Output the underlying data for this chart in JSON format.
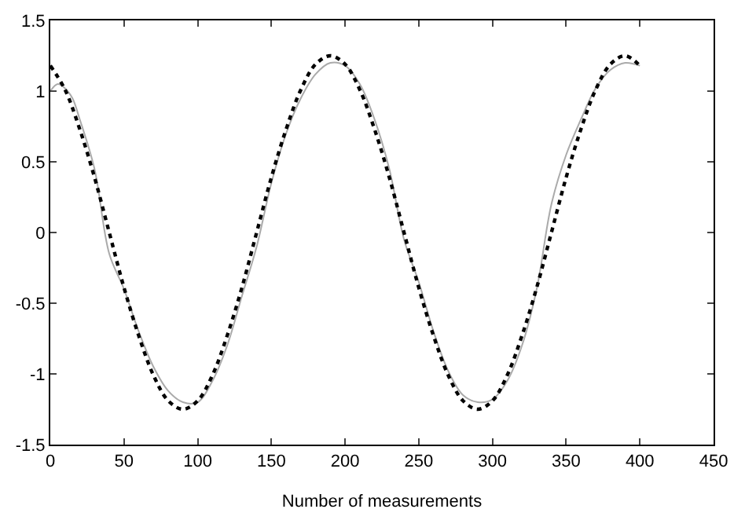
{
  "chart_data": {
    "type": "line",
    "xlabel": "Number of measurements",
    "xlim": [
      0,
      450
    ],
    "xticks": [
      0,
      50,
      100,
      150,
      200,
      250,
      300,
      350,
      400,
      450
    ],
    "ylim": [
      -1.5,
      1.5
    ],
    "yticks": [
      -1.5,
      -1,
      -0.5,
      0,
      0.5,
      1,
      1.5
    ],
    "marker": "none",
    "series": [
      {
        "color": "#aaaaaa",
        "line_style": "solid",
        "x": [
          0,
          5,
          10,
          15,
          20,
          30,
          40,
          50,
          60,
          70,
          80,
          90,
          100,
          110,
          120,
          130,
          140,
          150,
          160,
          170,
          180,
          190,
          200,
          210,
          220,
          230,
          240,
          250,
          260,
          270,
          280,
          290,
          300,
          310,
          320,
          330,
          340,
          350,
          360,
          370,
          380,
          390,
          400
        ],
        "values": [
          1.0,
          1.05,
          1.02,
          0.95,
          0.8,
          0.45,
          -0.15,
          -0.4,
          -0.7,
          -0.95,
          -1.12,
          -1.2,
          -1.2,
          -1.05,
          -0.8,
          -0.45,
          -0.1,
          0.35,
          0.7,
          0.95,
          1.12,
          1.2,
          1.18,
          1.05,
          0.8,
          0.45,
          -0.05,
          -0.35,
          -0.7,
          -0.98,
          -1.15,
          -1.2,
          -1.18,
          -1.05,
          -0.8,
          -0.4,
          0.2,
          0.55,
          0.8,
          1.02,
          1.15,
          1.2,
          1.18
        ]
      },
      {
        "color": "#000000",
        "line_style": "dotted",
        "x": [
          0,
          10,
          20,
          30,
          40,
          50,
          60,
          70,
          80,
          90,
          100,
          110,
          120,
          130,
          140,
          150,
          160,
          170,
          180,
          190,
          200,
          210,
          220,
          230,
          240,
          250,
          260,
          270,
          280,
          290,
          300,
          310,
          320,
          330,
          340,
          350,
          360,
          370,
          380,
          390,
          400
        ],
        "values": [
          1.18,
          1.01,
          0.73,
          0.39,
          0,
          -0.39,
          -0.73,
          -1.01,
          -1.19,
          -1.25,
          -1.19,
          -1.01,
          -0.73,
          -0.39,
          0,
          0.39,
          0.73,
          1.01,
          1.19,
          1.25,
          1.19,
          1.01,
          0.73,
          0.39,
          0,
          -0.39,
          -0.73,
          -1.01,
          -1.19,
          -1.25,
          -1.19,
          -1.01,
          -0.73,
          -0.39,
          0,
          0.39,
          0.73,
          1.01,
          1.19,
          1.25,
          1.18
        ]
      }
    ]
  }
}
